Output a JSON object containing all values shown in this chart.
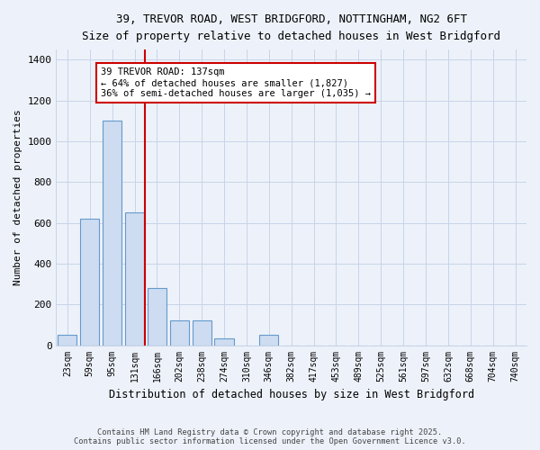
{
  "title_line1": "39, TREVOR ROAD, WEST BRIDGFORD, NOTTINGHAM, NG2 6FT",
  "title_line2": "Size of property relative to detached houses in West Bridgford",
  "xlabel": "Distribution of detached houses by size in West Bridgford",
  "ylabel": "Number of detached properties",
  "bin_labels": [
    "23sqm",
    "59sqm",
    "95sqm",
    "131sqm",
    "166sqm",
    "202sqm",
    "238sqm",
    "274sqm",
    "310sqm",
    "346sqm",
    "382sqm",
    "417sqm",
    "453sqm",
    "489sqm",
    "525sqm",
    "561sqm",
    "597sqm",
    "632sqm",
    "668sqm",
    "704sqm",
    "740sqm"
  ],
  "bar_heights": [
    50,
    620,
    1100,
    650,
    280,
    120,
    120,
    35,
    0,
    50,
    0,
    0,
    0,
    0,
    0,
    0,
    0,
    0,
    0,
    0,
    0
  ],
  "bar_color": "#cddcf0",
  "bar_edge_color": "#6699cc",
  "grid_color": "#c8d4e8",
  "background_color": "#edf2fa",
  "red_line_color": "#cc0000",
  "red_line_bin_index": 3.48,
  "annotation_text": "39 TREVOR ROAD: 137sqm\n← 64% of detached houses are smaller (1,827)\n36% of semi-detached houses are larger (1,035) →",
  "annotation_box_facecolor": "#ffffff",
  "annotation_box_edgecolor": "#cc0000",
  "ylim": [
    0,
    1450
  ],
  "yticks": [
    0,
    200,
    400,
    600,
    800,
    1000,
    1200,
    1400
  ],
  "footer_line1": "Contains HM Land Registry data © Crown copyright and database right 2025.",
  "footer_line2": "Contains public sector information licensed under the Open Government Licence v3.0."
}
